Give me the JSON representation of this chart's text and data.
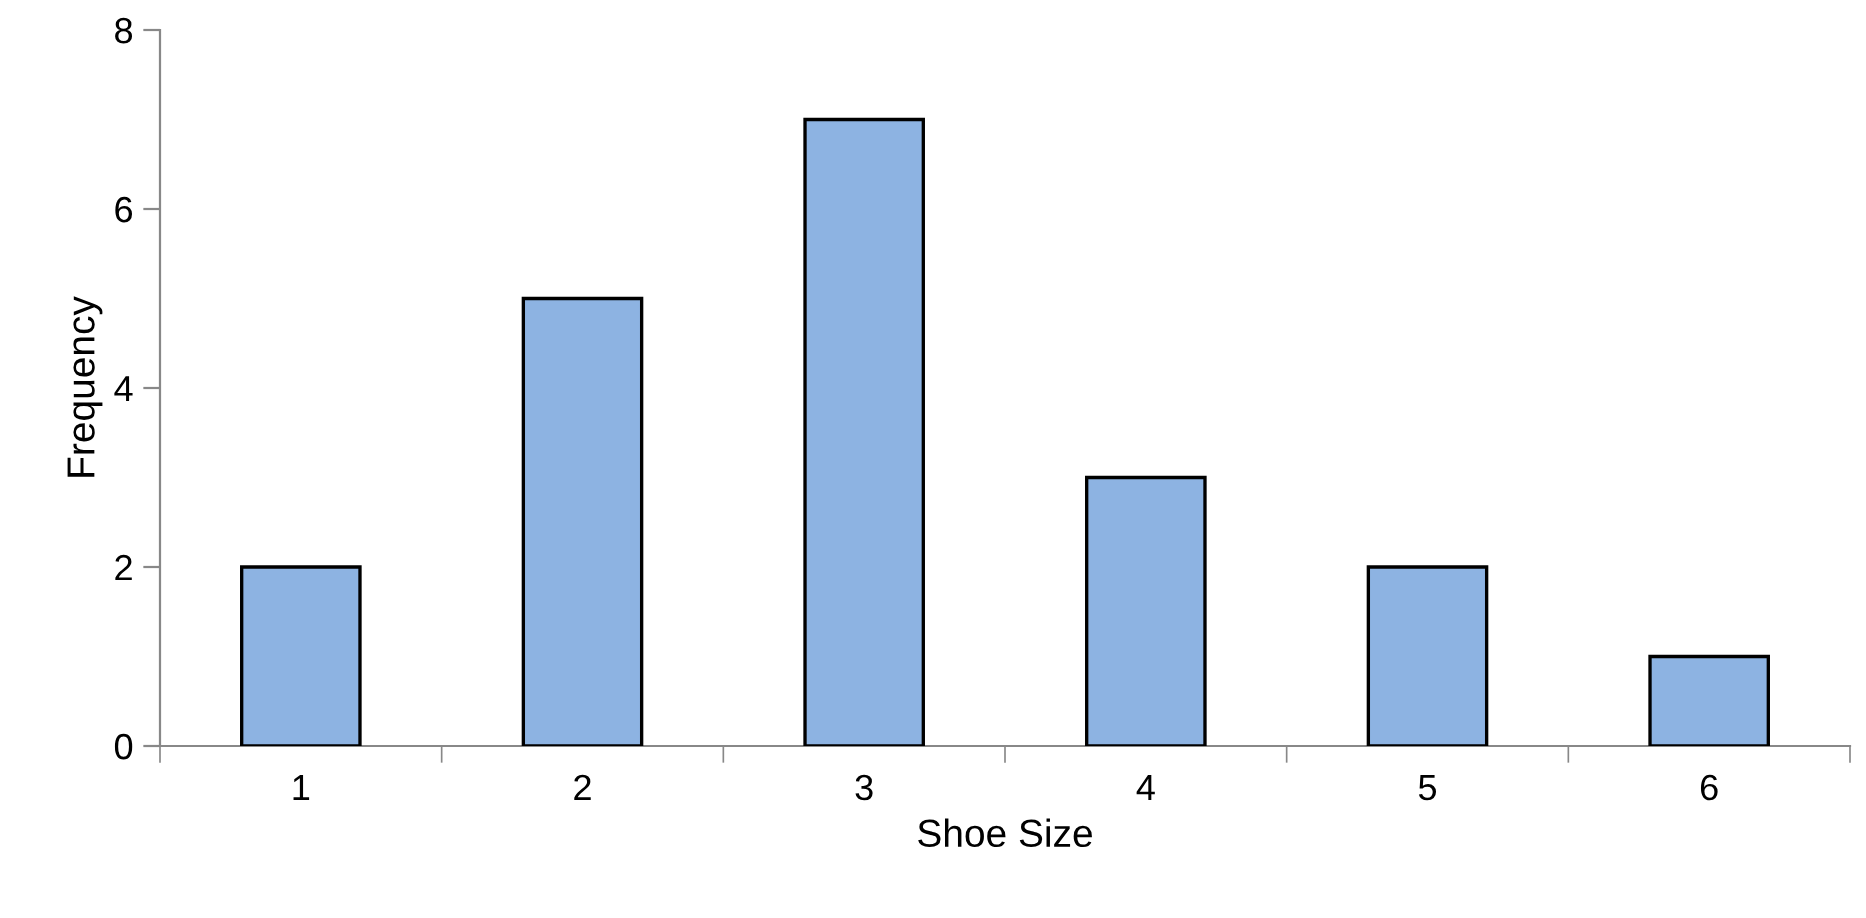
{
  "chart_data": {
    "type": "bar",
    "xlabel": "Shoe Size",
    "ylabel": "Frequency",
    "categories": [
      "1",
      "2",
      "3",
      "4",
      "5",
      "6"
    ],
    "values": [
      2,
      5,
      7,
      3,
      2,
      1
    ],
    "color": "#8db3e2",
    "ylim": [
      0,
      8
    ],
    "yticks": [
      0,
      2,
      4,
      6,
      8
    ],
    "grid": false,
    "legend": false
  }
}
